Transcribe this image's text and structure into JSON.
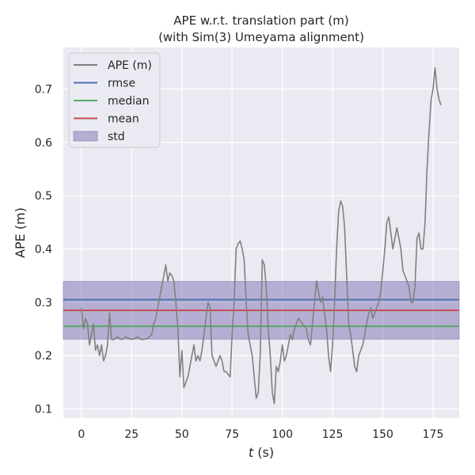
{
  "chart_data": {
    "type": "line",
    "title_line1": "APE w.r.t. translation part (m)",
    "title_line2": "(with Sim(3) Umeyama alignment)",
    "xlabel_var": "t",
    "xlabel_unit": " (s)",
    "ylabel": "APE (m)",
    "xlim": [
      -9,
      188
    ],
    "ylim": [
      0.083,
      0.778
    ],
    "xticks": [
      0,
      25,
      50,
      75,
      100,
      125,
      150,
      175
    ],
    "yticks": [
      0.1,
      0.2,
      0.3,
      0.4,
      0.5,
      0.6,
      0.7
    ],
    "stats": {
      "rmse": 0.305,
      "median": 0.255,
      "mean": 0.285,
      "std": 0.054,
      "std_low": 0.231,
      "std_high": 0.339
    },
    "legend": [
      {
        "key": "ape",
        "label": "APE (m)",
        "kind": "line",
        "color": "#808080"
      },
      {
        "key": "rmse",
        "label": "rmse",
        "kind": "line",
        "color": "#4c72b0"
      },
      {
        "key": "median",
        "label": "median",
        "kind": "line",
        "color": "#55a868"
      },
      {
        "key": "mean",
        "label": "mean",
        "kind": "line",
        "color": "#c44e52"
      },
      {
        "key": "std",
        "label": "std",
        "kind": "patch",
        "color": "#8172b2"
      }
    ],
    "series": [
      {
        "name": "APE (m)",
        "color": "#808080",
        "x": [
          0,
          1,
          2,
          3,
          4,
          5,
          6,
          7,
          8,
          9,
          10,
          11,
          12,
          13,
          14,
          15,
          16,
          18,
          20,
          22,
          25,
          28,
          30,
          33,
          35,
          36,
          37,
          38,
          39,
          40,
          41,
          42,
          43,
          44,
          45,
          46,
          47,
          48,
          49,
          50,
          51,
          52,
          53,
          55,
          56,
          57,
          58,
          59,
          60,
          61,
          62,
          63,
          64,
          65,
          67,
          69,
          70,
          71,
          72,
          74,
          75,
          76,
          77,
          78,
          79,
          80,
          81,
          82,
          83,
          84,
          85,
          86,
          87,
          88,
          89,
          90,
          91,
          92,
          93,
          94,
          95,
          96,
          97,
          98,
          99,
          100,
          101,
          102,
          103,
          104,
          105,
          106,
          108,
          110,
          112,
          113,
          114,
          115,
          116,
          117,
          118,
          119,
          120,
          121,
          122,
          123,
          124,
          125,
          126,
          127,
          128,
          129,
          130,
          131,
          132,
          133,
          134,
          135,
          136,
          137,
          138,
          139,
          140,
          141,
          142,
          143,
          144,
          145,
          146,
          147,
          148,
          149,
          150,
          151,
          152,
          153,
          154,
          155,
          156,
          157,
          158,
          159,
          160,
          161,
          162,
          163,
          164,
          165,
          166,
          167,
          168,
          169,
          170,
          171,
          172,
          173,
          174,
          175,
          176,
          177,
          178,
          179
        ],
        "values": [
          0.29,
          0.25,
          0.27,
          0.26,
          0.22,
          0.24,
          0.26,
          0.21,
          0.22,
          0.2,
          0.22,
          0.19,
          0.2,
          0.22,
          0.28,
          0.23,
          0.23,
          0.235,
          0.23,
          0.235,
          0.23,
          0.235,
          0.23,
          0.232,
          0.24,
          0.26,
          0.27,
          0.29,
          0.31,
          0.33,
          0.35,
          0.37,
          0.34,
          0.355,
          0.35,
          0.34,
          0.3,
          0.25,
          0.16,
          0.21,
          0.14,
          0.15,
          0.16,
          0.2,
          0.22,
          0.19,
          0.2,
          0.19,
          0.21,
          0.24,
          0.27,
          0.3,
          0.29,
          0.2,
          0.18,
          0.2,
          0.19,
          0.17,
          0.17,
          0.16,
          0.24,
          0.3,
          0.4,
          0.41,
          0.415,
          0.4,
          0.38,
          0.3,
          0.24,
          0.22,
          0.2,
          0.16,
          0.12,
          0.13,
          0.2,
          0.38,
          0.37,
          0.33,
          0.25,
          0.2,
          0.13,
          0.11,
          0.18,
          0.17,
          0.19,
          0.22,
          0.19,
          0.2,
          0.22,
          0.24,
          0.23,
          0.25,
          0.27,
          0.26,
          0.25,
          0.23,
          0.22,
          0.26,
          0.3,
          0.34,
          0.32,
          0.3,
          0.31,
          0.28,
          0.25,
          0.2,
          0.17,
          0.22,
          0.3,
          0.4,
          0.47,
          0.49,
          0.48,
          0.44,
          0.35,
          0.26,
          0.24,
          0.21,
          0.18,
          0.17,
          0.2,
          0.21,
          0.22,
          0.24,
          0.26,
          0.28,
          0.29,
          0.27,
          0.28,
          0.29,
          0.3,
          0.32,
          0.36,
          0.4,
          0.45,
          0.46,
          0.43,
          0.4,
          0.42,
          0.44,
          0.42,
          0.4,
          0.36,
          0.35,
          0.34,
          0.33,
          0.3,
          0.3,
          0.33,
          0.42,
          0.43,
          0.4,
          0.4,
          0.45,
          0.55,
          0.62,
          0.68,
          0.7,
          0.74,
          0.7,
          0.68,
          0.67
        ]
      }
    ]
  }
}
